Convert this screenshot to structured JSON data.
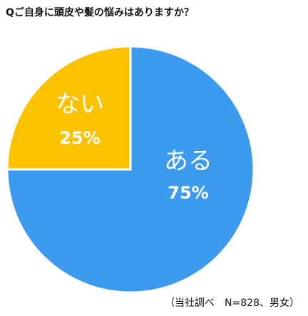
{
  "chart_data": {
    "type": "pie",
    "title": "Qご自身に頭皮や髪の悩みはありますか？",
    "categories": [
      "ある",
      "ない"
    ],
    "values": [
      75,
      25
    ],
    "value_labels": [
      "75%",
      "25%"
    ],
    "colors": [
      "#3d9bef",
      "#fbc200"
    ],
    "note": "（当社調べ　N=828、男女）"
  }
}
